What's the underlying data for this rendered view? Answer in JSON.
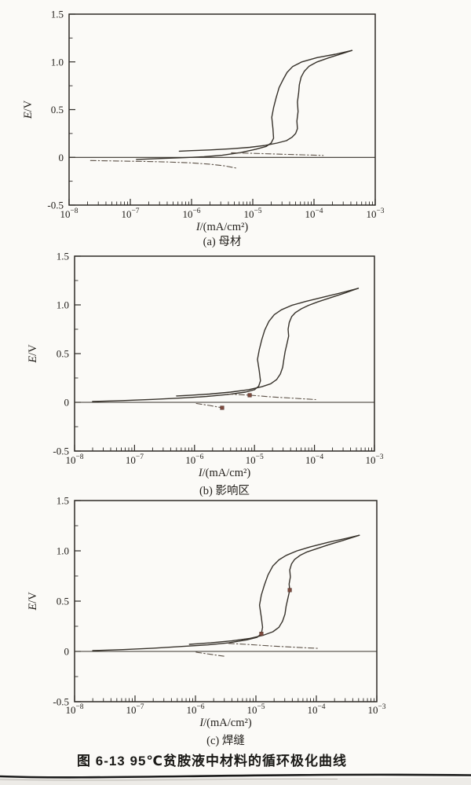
{
  "figure": {
    "caption": "图 6-13  95℃贫胺液中材料的循环极化曲线",
    "background_color": "#fbfaf7",
    "frame_color": "#2e2b27",
    "curve_color": "#37322b",
    "tail_color": "#5d5248",
    "marker_color": "#7d4a3e",
    "text_color": "#24211d"
  },
  "chart_data": [
    {
      "type": "line",
      "id": "a",
      "sublabel": "(a) 母材",
      "xlabel": "I/(mA/cm²)",
      "ylabel": "E/V",
      "x_scale": "log",
      "x_unit": "mA/cm², points given as log10(I)",
      "xlim_exp": [
        -8,
        -3
      ],
      "ylim": [
        -0.5,
        1.5
      ],
      "x_tick_exponents": [
        -8,
        -7,
        -6,
        -5,
        -4,
        -3
      ],
      "y_ticks": [
        {
          "v": 1.5,
          "label": "1.5"
        },
        {
          "v": 1.0,
          "label": "1.0"
        },
        {
          "v": 0.5,
          "label": "0.5"
        },
        {
          "v": 0.0,
          "label": "0"
        },
        {
          "v": -0.5,
          "label": "-0.5"
        }
      ],
      "grid": false,
      "legend": "none",
      "series": [
        {
          "name": "zero-line",
          "style": "solid",
          "points": [
            [
              -8,
              0
            ],
            [
              -3,
              0
            ]
          ]
        },
        {
          "name": "forward-scan",
          "style": "solid",
          "points": [
            [
              -6.9,
              -0.022
            ],
            [
              -6.5,
              -0.012
            ],
            [
              -6.1,
              -0.003
            ],
            [
              -5.8,
              0.006
            ],
            [
              -5.5,
              0.022
            ],
            [
              -5.2,
              0.05
            ],
            [
              -4.95,
              0.085
            ],
            [
              -4.78,
              0.115
            ],
            [
              -4.7,
              0.15
            ],
            [
              -4.66,
              0.2
            ],
            [
              -4.67,
              0.3
            ],
            [
              -4.69,
              0.42
            ],
            [
              -4.66,
              0.52
            ],
            [
              -4.62,
              0.62
            ],
            [
              -4.57,
              0.73
            ],
            [
              -4.5,
              0.82
            ],
            [
              -4.44,
              0.89
            ],
            [
              -4.35,
              0.95
            ],
            [
              -4.2,
              1.0
            ],
            [
              -3.95,
              1.045
            ],
            [
              -3.65,
              1.08
            ],
            [
              -3.38,
              1.12
            ]
          ]
        },
        {
          "name": "reverse-scan",
          "style": "solid",
          "points": [
            [
              -3.38,
              1.12
            ],
            [
              -3.55,
              1.085
            ],
            [
              -3.75,
              1.045
            ],
            [
              -3.95,
              1.0
            ],
            [
              -4.08,
              0.955
            ],
            [
              -4.16,
              0.9
            ],
            [
              -4.21,
              0.84
            ],
            [
              -4.24,
              0.76
            ],
            [
              -4.25,
              0.68
            ],
            [
              -4.27,
              0.58
            ],
            [
              -4.26,
              0.48
            ],
            [
              -4.28,
              0.38
            ],
            [
              -4.27,
              0.3
            ],
            [
              -4.3,
              0.25
            ],
            [
              -4.36,
              0.21
            ],
            [
              -4.45,
              0.175
            ],
            [
              -4.6,
              0.15
            ],
            [
              -4.8,
              0.125
            ],
            [
              -5.05,
              0.105
            ],
            [
              -5.35,
              0.09
            ],
            [
              -5.7,
              0.078
            ],
            [
              -6.0,
              0.07
            ],
            [
              -6.2,
              0.065
            ]
          ]
        },
        {
          "name": "forward-cathodic-branch",
          "style": "dashdot",
          "points": [
            [
              -7.65,
              -0.033
            ],
            [
              -7.2,
              -0.038
            ],
            [
              -6.8,
              -0.042
            ],
            [
              -6.4,
              -0.048
            ],
            [
              -6.0,
              -0.058
            ],
            [
              -5.7,
              -0.072
            ],
            [
              -5.45,
              -0.09
            ],
            [
              -5.25,
              -0.115
            ]
          ]
        },
        {
          "name": "reverse-cathodic-tail",
          "style": "dashdot",
          "points": [
            [
              -5.35,
              0.048
            ],
            [
              -5.0,
              0.042
            ],
            [
              -4.6,
              0.034
            ],
            [
              -4.2,
              0.027
            ],
            [
              -3.85,
              0.02
            ]
          ]
        }
      ],
      "markers": []
    },
    {
      "type": "line",
      "id": "b",
      "sublabel": "(b) 影响区",
      "xlabel": "I/(mA/cm²)",
      "ylabel": "E/V",
      "x_scale": "log",
      "x_unit": "mA/cm², points given as log10(I)",
      "xlim_exp": [
        -8,
        -3
      ],
      "ylim": [
        -0.5,
        1.5
      ],
      "x_tick_exponents": [
        -8,
        -7,
        -6,
        -5,
        -4,
        -3
      ],
      "y_ticks": [
        {
          "v": 1.5,
          "label": "1.5"
        },
        {
          "v": 1.0,
          "label": "1.0"
        },
        {
          "v": 0.5,
          "label": "0.5"
        },
        {
          "v": 0.0,
          "label": "0"
        },
        {
          "v": -0.5,
          "label": "-0.5"
        }
      ],
      "grid": false,
      "legend": "none",
      "series": [
        {
          "name": "zero-line",
          "style": "solid",
          "points": [
            [
              -8,
              0
            ],
            [
              -3,
              0
            ]
          ]
        },
        {
          "name": "forward-scan",
          "style": "solid",
          "points": [
            [
              -7.7,
              0.008
            ],
            [
              -7.2,
              0.018
            ],
            [
              -6.7,
              0.03
            ],
            [
              -6.2,
              0.045
            ],
            [
              -5.8,
              0.06
            ],
            [
              -5.45,
              0.08
            ],
            [
              -5.15,
              0.105
            ],
            [
              -5.0,
              0.13
            ],
            [
              -4.93,
              0.165
            ],
            [
              -4.9,
              0.22
            ],
            [
              -4.92,
              0.32
            ],
            [
              -4.95,
              0.44
            ],
            [
              -4.92,
              0.54
            ],
            [
              -4.88,
              0.64
            ],
            [
              -4.83,
              0.74
            ],
            [
              -4.76,
              0.83
            ],
            [
              -4.67,
              0.9
            ],
            [
              -4.55,
              0.95
            ],
            [
              -4.38,
              0.995
            ],
            [
              -4.15,
              1.035
            ],
            [
              -3.85,
              1.08
            ],
            [
              -3.55,
              1.125
            ],
            [
              -3.27,
              1.17
            ]
          ]
        },
        {
          "name": "reverse-scan",
          "style": "solid",
          "points": [
            [
              -3.27,
              1.17
            ],
            [
              -3.5,
              1.12
            ],
            [
              -3.75,
              1.07
            ],
            [
              -3.95,
              1.03
            ],
            [
              -4.1,
              0.995
            ],
            [
              -4.22,
              0.96
            ],
            [
              -4.32,
              0.92
            ],
            [
              -4.38,
              0.88
            ],
            [
              -4.42,
              0.82
            ],
            [
              -4.44,
              0.75
            ],
            [
              -4.43,
              0.68
            ],
            [
              -4.46,
              0.6
            ],
            [
              -4.49,
              0.52
            ],
            [
              -4.51,
              0.44
            ],
            [
              -4.53,
              0.36
            ],
            [
              -4.57,
              0.29
            ],
            [
              -4.63,
              0.235
            ],
            [
              -4.73,
              0.19
            ],
            [
              -4.88,
              0.16
            ],
            [
              -5.1,
              0.13
            ],
            [
              -5.4,
              0.105
            ],
            [
              -5.75,
              0.085
            ],
            [
              -6.05,
              0.073
            ],
            [
              -6.3,
              0.065
            ]
          ]
        },
        {
          "name": "reverse-cathodic-tail",
          "style": "dashdot",
          "points": [
            [
              -5.45,
              0.085
            ],
            [
              -5.08,
              0.073
            ],
            [
              -4.7,
              0.055
            ],
            [
              -4.3,
              0.04
            ],
            [
              -3.98,
              0.028
            ]
          ]
        },
        {
          "name": "below-zero-branch",
          "style": "dashdot",
          "points": [
            [
              -5.97,
              -0.012
            ],
            [
              -5.75,
              -0.032
            ],
            [
              -5.54,
              -0.056
            ]
          ]
        }
      ],
      "markers": [
        {
          "x_log": -5.08,
          "y": 0.073
        },
        {
          "x_log": -5.54,
          "y": -0.056
        }
      ]
    },
    {
      "type": "line",
      "id": "c",
      "sublabel": "(c) 焊缝",
      "xlabel": "I/(mA/cm²)",
      "ylabel": "E/V",
      "x_scale": "log",
      "x_unit": "mA/cm², points given as log10(I)",
      "xlim_exp": [
        -8,
        -3
      ],
      "ylim": [
        -0.5,
        1.5
      ],
      "x_tick_exponents": [
        -8,
        -7,
        -6,
        -5,
        -4,
        -3
      ],
      "y_ticks": [
        {
          "v": 1.5,
          "label": "1.5"
        },
        {
          "v": 1.0,
          "label": "1.0"
        },
        {
          "v": 0.5,
          "label": "0.5"
        },
        {
          "v": 0.0,
          "label": "0"
        },
        {
          "v": -0.5,
          "label": "-0.5"
        }
      ],
      "grid": false,
      "legend": "none",
      "series": [
        {
          "name": "zero-line",
          "style": "solid",
          "points": [
            [
              -8,
              0
            ],
            [
              -3,
              0
            ]
          ]
        },
        {
          "name": "forward-scan",
          "style": "solid",
          "points": [
            [
              -7.7,
              0.008
            ],
            [
              -7.2,
              0.018
            ],
            [
              -6.7,
              0.032
            ],
            [
              -6.2,
              0.05
            ],
            [
              -5.8,
              0.065
            ],
            [
              -5.45,
              0.085
            ],
            [
              -5.15,
              0.115
            ],
            [
              -4.98,
              0.14
            ],
            [
              -4.91,
              0.175
            ],
            [
              -4.89,
              0.24
            ],
            [
              -4.91,
              0.34
            ],
            [
              -4.94,
              0.46
            ],
            [
              -4.91,
              0.56
            ],
            [
              -4.86,
              0.66
            ],
            [
              -4.8,
              0.76
            ],
            [
              -4.72,
              0.85
            ],
            [
              -4.62,
              0.91
            ],
            [
              -4.5,
              0.955
            ],
            [
              -4.32,
              1.0
            ],
            [
              -4.1,
              1.04
            ],
            [
              -3.8,
              1.085
            ],
            [
              -3.5,
              1.125
            ],
            [
              -3.29,
              1.155
            ]
          ]
        },
        {
          "name": "reverse-scan",
          "style": "solid",
          "points": [
            [
              -3.29,
              1.155
            ],
            [
              -3.55,
              1.105
            ],
            [
              -3.8,
              1.06
            ],
            [
              -4.0,
              1.02
            ],
            [
              -4.15,
              0.99
            ],
            [
              -4.27,
              0.955
            ],
            [
              -4.36,
              0.915
            ],
            [
              -4.41,
              0.87
            ],
            [
              -4.44,
              0.81
            ],
            [
              -4.43,
              0.74
            ],
            [
              -4.45,
              0.67
            ],
            [
              -4.44,
              0.61
            ],
            [
              -4.47,
              0.53
            ],
            [
              -4.5,
              0.45
            ],
            [
              -4.52,
              0.37
            ],
            [
              -4.56,
              0.3
            ],
            [
              -4.62,
              0.24
            ],
            [
              -4.72,
              0.195
            ],
            [
              -4.88,
              0.16
            ],
            [
              -5.1,
              0.13
            ],
            [
              -5.4,
              0.105
            ],
            [
              -5.75,
              0.085
            ],
            [
              -6.1,
              0.07
            ]
          ]
        },
        {
          "name": "reverse-cathodic-tail",
          "style": "dashdot",
          "points": [
            [
              -5.45,
              0.08
            ],
            [
              -5.1,
              0.068
            ],
            [
              -4.7,
              0.052
            ],
            [
              -4.3,
              0.04
            ],
            [
              -3.95,
              0.03
            ]
          ]
        },
        {
          "name": "below-zero-branch",
          "style": "dashdot",
          "points": [
            [
              -5.99,
              -0.008
            ],
            [
              -5.76,
              -0.028
            ],
            [
              -5.53,
              -0.048
            ]
          ]
        }
      ],
      "markers": [
        {
          "x_log": -4.91,
          "y": 0.175
        },
        {
          "x_log": -4.44,
          "y": 0.61
        }
      ]
    }
  ]
}
